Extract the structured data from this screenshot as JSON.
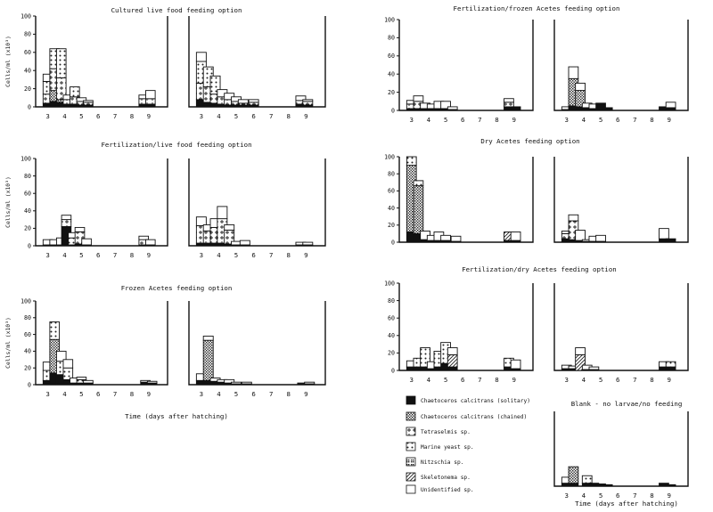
{
  "chart_data": {
    "type": "bar",
    "stacked": true,
    "ylim": [
      0,
      100
    ],
    "yticks": [
      0,
      20,
      40,
      60,
      80,
      100
    ],
    "ylabel": "Cells/ml (x10³)",
    "xlabel": "Time (days after hatching)",
    "x_ticks": [
      "3",
      "4",
      "5",
      "6",
      "7",
      "8",
      "9"
    ],
    "species": [
      {
        "key": "cs",
        "label": "Chaetoceros calcitrans (solitary)",
        "fill": "#111111"
      },
      {
        "key": "cc",
        "label": "Chaetoceros calcitrans (chained)",
        "fill": "dense"
      },
      {
        "key": "te",
        "label": "Tetraselmis sp.",
        "fill": "plus"
      },
      {
        "key": "my",
        "label": "Marine yeast sp.",
        "fill": "dots"
      },
      {
        "key": "ni",
        "label": "Nitzschia sp.",
        "fill": "grid"
      },
      {
        "key": "sk",
        "label": "Skeletonema sp.",
        "fill": "hatch"
      },
      {
        "key": "un",
        "label": "Unidentified sp.",
        "fill": "#ffffff"
      }
    ],
    "panels": [
      {
        "title": "Cultured live food feeding option",
        "show_yticks": true,
        "show_ylabel": true,
        "show_days": true,
        "left": {
          "bars": [
            {
              "day": 3.0,
              "cs": 4,
              "my": 14,
              "te": 10,
              "un": 8
            },
            {
              "day": 3.4,
              "cs": 6,
              "cc": 12,
              "te": 24,
              "my": 22
            },
            {
              "day": 3.8,
              "cs": 5,
              "cc": 3,
              "te": 24,
              "my": 32
            },
            {
              "day": 4.2,
              "cs": 3,
              "te": 5,
              "un": 5
            },
            {
              "day": 4.6,
              "cs": 3,
              "te": 8,
              "my": 11
            },
            {
              "day": 5.0,
              "cs": 2,
              "te": 4,
              "un": 4
            },
            {
              "day": 5.4,
              "cs": 2,
              "te": 3,
              "un": 2
            },
            {
              "day": 8.7,
              "cs": 3,
              "te": 6,
              "un": 4
            },
            {
              "day": 9.1,
              "cs": 3,
              "te": 6,
              "un": 9
            }
          ]
        },
        "right": {
          "bars": [
            {
              "day": 3.0,
              "cs": 8,
              "te": 18,
              "my": 24,
              "un": 10
            },
            {
              "day": 3.4,
              "cs": 5,
              "te": 17,
              "my": 22
            },
            {
              "day": 3.8,
              "cs": 4,
              "te": 10,
              "my": 20
            },
            {
              "day": 4.2,
              "cs": 3,
              "te": 8,
              "un": 8
            },
            {
              "day": 4.6,
              "cs": 2,
              "te": 6,
              "un": 7
            },
            {
              "day": 5.0,
              "cs": 2,
              "te": 4,
              "un": 5
            },
            {
              "day": 5.4,
              "cs": 2,
              "te": 2,
              "un": 4
            },
            {
              "day": 6.0,
              "cs": 2,
              "te": 3,
              "un": 3
            },
            {
              "day": 8.7,
              "cs": 3,
              "te": 4,
              "un": 5
            },
            {
              "day": 9.1,
              "cs": 2,
              "te": 4,
              "un": 2
            }
          ]
        }
      },
      {
        "title": "Fertilization/live food feeding option",
        "show_yticks": true,
        "show_ylabel": true,
        "show_days": true,
        "left": {
          "bars": [
            {
              "day": 3.0,
              "cs": 1,
              "un": 6
            },
            {
              "day": 3.4,
              "cs": 1,
              "un": 6
            },
            {
              "day": 3.8,
              "cs": 1,
              "un": 8
            },
            {
              "day": 4.1,
              "cs": 22,
              "te": 8,
              "un": 5
            },
            {
              "day": 4.5,
              "cs": 1,
              "my": 8,
              "un": 6
            },
            {
              "day": 4.9,
              "cs": 2,
              "te": 14,
              "un": 5
            },
            {
              "day": 5.3,
              "cs": 1,
              "un": 7
            },
            {
              "day": 8.7,
              "cs": 1,
              "te": 6,
              "un": 4
            },
            {
              "day": 9.1,
              "cs": 1,
              "un": 6
            }
          ]
        },
        "right": {
          "bars": [
            {
              "day": 3.0,
              "cs": 3,
              "te": 20,
              "un": 10
            },
            {
              "day": 3.4,
              "cs": 3,
              "te": 14,
              "un": 7
            },
            {
              "day": 3.8,
              "cs": 3,
              "te": 18,
              "un": 10
            },
            {
              "day": 4.2,
              "cs": 3,
              "te": 28,
              "un": 14
            },
            {
              "day": 4.6,
              "cs": 2,
              "te": 16,
              "un": 6
            },
            {
              "day": 5.0,
              "cs": 1,
              "un": 4
            },
            {
              "day": 5.5,
              "cs": 1,
              "un": 5
            },
            {
              "day": 8.7,
              "cs": 1,
              "un": 3
            },
            {
              "day": 9.1,
              "cs": 1,
              "un": 3
            }
          ]
        }
      },
      {
        "title": "Frozen Acetes feeding option",
        "show_yticks": true,
        "show_ylabel": true,
        "show_days": true,
        "left": {
          "bars": [
            {
              "day": 3.0,
              "cs": 5,
              "my": 12,
              "un": 10
            },
            {
              "day": 3.4,
              "cs": 14,
              "cc": 40,
              "my": 21
            },
            {
              "day": 3.8,
              "cs": 12,
              "my": 16,
              "un": 12
            },
            {
              "day": 4.2,
              "cs": 6,
              "my": 14,
              "un": 10
            },
            {
              "day": 4.6,
              "cs": 2,
              "un": 6
            },
            {
              "day": 5.0,
              "cs": 2,
              "my": 4,
              "un": 3
            },
            {
              "day": 5.4,
              "cs": 2,
              "un": 3
            },
            {
              "day": 8.8,
              "cs": 3,
              "un": 2
            },
            {
              "day": 9.2,
              "cs": 2,
              "un": 2
            }
          ]
        },
        "right": {
          "bars": [
            {
              "day": 3.0,
              "cs": 5,
              "un": 8
            },
            {
              "day": 3.4,
              "cs": 5,
              "cc": 48,
              "un": 5
            },
            {
              "day": 3.8,
              "cs": 4,
              "un": 4
            },
            {
              "day": 4.2,
              "cs": 3,
              "un": 3
            },
            {
              "day": 4.6,
              "cs": 2,
              "un": 4
            },
            {
              "day": 5.0,
              "cs": 1,
              "un": 2
            },
            {
              "day": 5.6,
              "cs": 1,
              "un": 2
            },
            {
              "day": 8.8,
              "cs": 1,
              "un": 1
            },
            {
              "day": 9.2,
              "cs": 1,
              "un": 2
            }
          ]
        }
      },
      {
        "title": "Fertilization/frozen Acetes feeding option",
        "show_yticks": true,
        "show_ylabel": false,
        "show_days": true,
        "left": {
          "bars": [
            {
              "day": 3.0,
              "cs": 2,
              "te": 5,
              "un": 4
            },
            {
              "day": 3.4,
              "cs": 2,
              "te": 8,
              "un": 6
            },
            {
              "day": 3.8,
              "cs": 2,
              "un": 6
            },
            {
              "day": 4.2,
              "cs": 2,
              "un": 5
            },
            {
              "day": 4.6,
              "cs": 2,
              "un": 8
            },
            {
              "day": 5.0,
              "cs": 2,
              "un": 8
            },
            {
              "day": 5.4,
              "cs": 1,
              "un": 3
            },
            {
              "day": 8.7,
              "cs": 4,
              "te": 5,
              "un": 4
            },
            {
              "day": 9.1,
              "cs": 4
            }
          ]
        },
        "right": {
          "bars": [
            {
              "day": 3.0,
              "cs": 1,
              "un": 3
            },
            {
              "day": 3.4,
              "cs": 5,
              "cc": 30,
              "un": 13
            },
            {
              "day": 3.8,
              "cs": 4,
              "cc": 18,
              "un": 8
            },
            {
              "day": 4.2,
              "cs": 3,
              "un": 5
            },
            {
              "day": 4.6,
              "cs": 2,
              "un": 5
            },
            {
              "day": 5.0,
              "cs": 8
            },
            {
              "day": 5.4,
              "cs": 3
            },
            {
              "day": 8.7,
              "cs": 4
            },
            {
              "day": 9.1,
              "cs": 3,
              "un": 6
            }
          ]
        }
      },
      {
        "title": "Dry Acetes feeding option",
        "show_yticks": true,
        "show_ylabel": false,
        "show_days": false,
        "left": {
          "bars": [
            {
              "day": 3.0,
              "cs": 12,
              "cc": 78,
              "my": 10
            },
            {
              "day": 3.4,
              "cs": 10,
              "cc": 56,
              "my": 6
            },
            {
              "day": 3.8,
              "cs": 3,
              "un": 10
            },
            {
              "day": 4.2,
              "cs": 2,
              "un": 6
            },
            {
              "day": 4.6,
              "cs": 2,
              "un": 10
            },
            {
              "day": 5.0,
              "cs": 2,
              "un": 6
            },
            {
              "day": 5.6,
              "cs": 1,
              "un": 6
            },
            {
              "day": 8.7,
              "cs": 2,
              "sk": 10
            },
            {
              "day": 9.1,
              "cs": 2,
              "un": 10
            }
          ]
        },
        "right": {
          "bars": [
            {
              "day": 3.0,
              "cs": 4,
              "te": 6,
              "un": 3
            },
            {
              "day": 3.4,
              "cs": 3,
              "te": 22,
              "un": 7
            },
            {
              "day": 3.8,
              "cs": 2,
              "un": 12
            },
            {
              "day": 4.2,
              "cs": 1,
              "un": 2
            },
            {
              "day": 4.6,
              "cs": 1,
              "un": 6
            },
            {
              "day": 5.0,
              "cs": 1,
              "un": 7
            },
            {
              "day": 8.7,
              "cs": 4,
              "un": 12
            },
            {
              "day": 9.1,
              "cs": 4
            }
          ]
        }
      },
      {
        "title": "Fertilization/dry Acetes feeding option",
        "show_yticks": true,
        "show_ylabel": false,
        "show_days": true,
        "left": {
          "bars": [
            {
              "day": 3.0,
              "cs": 4,
              "un": 7
            },
            {
              "day": 3.4,
              "cs": 4,
              "my": 10
            },
            {
              "day": 3.8,
              "cs": 4,
              "my": 22
            },
            {
              "day": 4.2,
              "cs": 2,
              "un": 8
            },
            {
              "day": 4.6,
              "cs": 4,
              "my": 18
            },
            {
              "day": 5.0,
              "cs": 8,
              "my": 24
            },
            {
              "day": 5.4,
              "cs": 4,
              "sk": 14,
              "un": 8
            },
            {
              "day": 8.7,
              "cs": 4,
              "my": 10
            },
            {
              "day": 9.1,
              "cs": 2,
              "un": 10
            }
          ]
        },
        "right": {
          "bars": [
            {
              "day": 3.0,
              "cs": 2,
              "un": 4
            },
            {
              "day": 3.4,
              "cs": 2,
              "un": 3
            },
            {
              "day": 3.8,
              "sk": 18,
              "un": 8
            },
            {
              "day": 4.2,
              "cs": 1,
              "un": 5
            },
            {
              "day": 4.6,
              "cs": 1,
              "un": 3
            },
            {
              "day": 8.7,
              "cs": 4,
              "un": 6
            },
            {
              "day": 9.1,
              "cs": 4,
              "my": 6
            }
          ]
        }
      },
      {
        "title": "Blank - no larvae/no feeding",
        "show_yticks": false,
        "show_ylabel": false,
        "show_days": true,
        "left": {
          "bars": [
            {
              "day": 3.0,
              "cs": 4,
              "un": 8
            },
            {
              "day": 3.4,
              "cs": 4,
              "cc": 22
            },
            {
              "day": 4.2,
              "cs": 4,
              "my": 10
            },
            {
              "day": 4.6,
              "cs": 4
            },
            {
              "day": 5.0,
              "cs": 3
            },
            {
              "day": 5.4,
              "cs": 2
            },
            {
              "day": 8.7,
              "cs": 4
            },
            {
              "day": 9.1,
              "cs": 2
            }
          ]
        }
      }
    ]
  }
}
